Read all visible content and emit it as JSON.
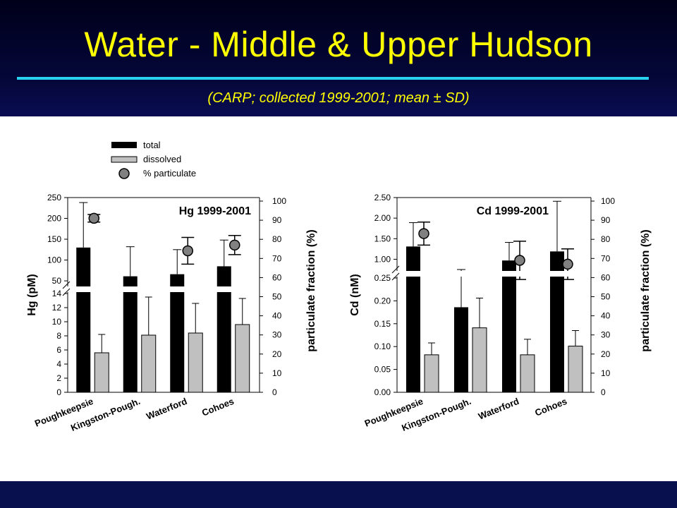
{
  "slide": {
    "title": "Water - Middle & Upper Hudson",
    "subtitle": "(CARP; collected 1999-2001; mean ± SD)"
  },
  "legend": [
    "total",
    "dissolved",
    "% particulate"
  ],
  "colors": {
    "total": "#000000",
    "dissolved": "#c0c0c0",
    "particulate_marker": "#808080",
    "title": "#ffff00",
    "rule": "#26d2ee"
  },
  "chart_data": [
    {
      "type": "bar",
      "title": "Hg 1999-2001",
      "ylabel": "Hg (pM)",
      "y2label": "particulate fraction (%)",
      "categories": [
        "Poughkeepsie",
        "Kingston-Pough.",
        "Waterford",
        "Cohoes"
      ],
      "y_lower_ticks": [
        "0",
        "2",
        "4",
        "6",
        "8",
        "10",
        "12",
        "14"
      ],
      "y_upper_ticks": [
        "50",
        "100",
        "150",
        "200",
        "250"
      ],
      "y_lower_range": [
        0,
        14
      ],
      "y_upper_range": [
        40,
        250
      ],
      "y_axis_break": "between 14 and 40",
      "y2_ticks": [
        "0",
        "10",
        "20",
        "30",
        "40",
        "50",
        "60",
        "70",
        "80",
        "90",
        "100"
      ],
      "y2_range": [
        0,
        100
      ],
      "series": [
        {
          "name": "total",
          "values": [
            130,
            61,
            66,
            85
          ],
          "sd": [
            108,
            71,
            59,
            63
          ]
        },
        {
          "name": "dissolved",
          "values": [
            5.6,
            8.1,
            8.4,
            9.6
          ],
          "sd": [
            2.6,
            5.4,
            4.2,
            3.7
          ]
        },
        {
          "name": "% particulate",
          "values": [
            91,
            null,
            74,
            77
          ],
          "sd": [
            2,
            null,
            7,
            5
          ]
        }
      ]
    },
    {
      "type": "bar",
      "title": "Cd 1999-2001",
      "ylabel": "Cd (nM)",
      "y2label": "particulate fraction (%)",
      "categories": [
        "Poughkeepsie",
        "Kingston-Pough.",
        "Waterford",
        "Cohoes"
      ],
      "y_lower_ticks": [
        "0.00",
        "0.05",
        "0.10",
        "0.15",
        "0.20",
        "0.25"
      ],
      "y_upper_ticks": [
        "1.00",
        "1.50",
        "2.00",
        "2.50"
      ],
      "y_lower_range": [
        0,
        0.25
      ],
      "y_upper_range": [
        0.75,
        2.5
      ],
      "y_axis_break": "between 0.25 and 0.75",
      "y2_ticks": [
        "0",
        "10",
        "20",
        "30",
        "40",
        "50",
        "60",
        "70",
        "80",
        "90",
        "100"
      ],
      "y2_range": [
        0,
        100
      ],
      "series": [
        {
          "name": "total",
          "values": [
            1.31,
            0.186,
            0.97,
            1.19
          ],
          "sd": [
            0.58,
            0.068,
            0.44,
            1.22
          ]
        },
        {
          "name": "dissolved",
          "values": [
            0.082,
            0.141,
            0.082,
            0.101
          ],
          "sd": [
            0.026,
            0.065,
            0.034,
            0.034
          ]
        },
        {
          "name": "% particulate",
          "values": [
            83,
            null,
            69,
            67
          ],
          "sd": [
            6,
            null,
            10,
            8
          ]
        }
      ]
    }
  ]
}
